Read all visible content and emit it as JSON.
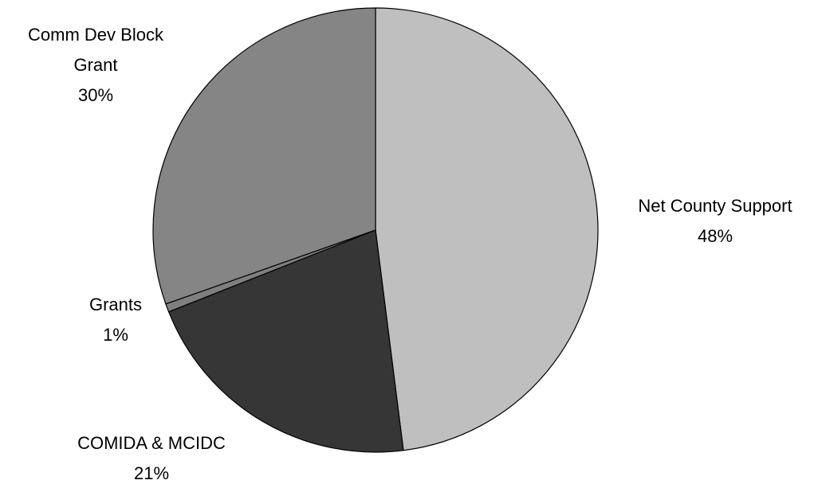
{
  "chart_data": {
    "type": "pie",
    "slices": [
      {
        "label_lines": [
          "Net County Support"
        ],
        "percent_label": "48%",
        "value": 48,
        "color": "#bfbfbf"
      },
      {
        "label_lines": [
          "COMIDA & MCIDC"
        ],
        "percent_label": "21%",
        "value": 21,
        "color": "#363636"
      },
      {
        "label_lines": [
          "Grants"
        ],
        "percent_label": "1%",
        "value": 0.6,
        "color": "#7f7f7f"
      },
      {
        "label_lines": [
          "Comm Dev Block",
          "Grant"
        ],
        "percent_label": "30%",
        "value": 30.4,
        "color": "#858585"
      }
    ],
    "start_angle_deg": 0,
    "direction": "clockwise",
    "legend": "none",
    "title": ""
  }
}
